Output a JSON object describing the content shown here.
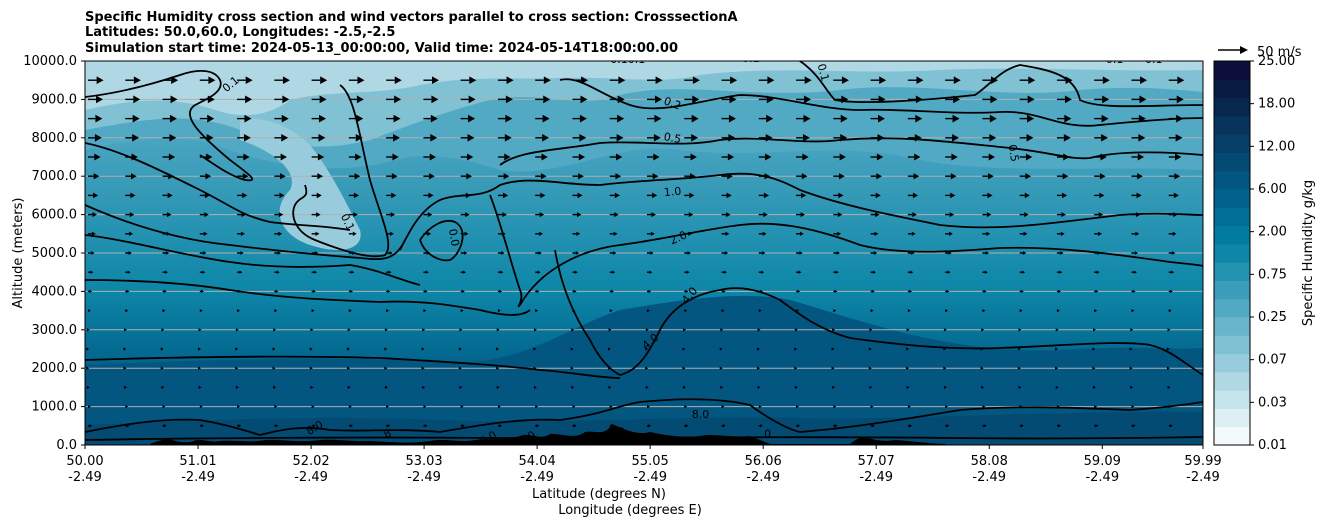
{
  "chart_data": {
    "type": "contour",
    "title_lines": [
      "Specific Humidity cross section and wind vectors parallel to cross section: CrosssectionA",
      "Latitudes: 50.0,60.0, Longitudes: -2.5,-2.5",
      "Simulation start time: 2024-05-13_00:00:00, Valid time: 2024-05-14T18:00:00.00"
    ],
    "ylabel": "Altitude (meters)",
    "xlabel_lat": "Latitude (degrees N)",
    "xlabel_lon": "Longitude (degrees E)",
    "ylim": [
      0,
      10000
    ],
    "xlim": [
      50.0,
      59.99
    ],
    "y_ticks": [
      "0.0",
      "1000.0",
      "2000.0",
      "3000.0",
      "4000.0",
      "5000.0",
      "6000.0",
      "7000.0",
      "8000.0",
      "9000.0",
      "10000.0"
    ],
    "x_ticks_lat": [
      "50.00",
      "51.01",
      "52.02",
      "53.03",
      "54.04",
      "55.05",
      "56.06",
      "57.07",
      "58.08",
      "59.09",
      "59.99"
    ],
    "x_ticks_lon": [
      "-2.49",
      "-2.49",
      "-2.49",
      "-2.49",
      "-2.49",
      "-2.49",
      "-2.49",
      "-2.49",
      "-2.49",
      "-2.49",
      "-2.49"
    ],
    "grid": "horizontal",
    "colorbar": {
      "label": "Specific Humidity g/kg",
      "tick_labels": [
        "0.01",
        "0.03",
        "0.07",
        "0.25",
        "0.75",
        "2.00",
        "6.00",
        "12.00",
        "18.00",
        "25.00"
      ],
      "colors": [
        "#f4fafc",
        "#deeff4",
        "#c6e4ec",
        "#afd8e4",
        "#98ccdc",
        "#80c1d4",
        "#69b5cc",
        "#52a9c3",
        "#3b9dba",
        "#2492b1",
        "#0d86a8",
        "#037aa0",
        "#016e97",
        "#02628c",
        "#035680",
        "#044b74",
        "#063f68",
        "#07335c",
        "#08274f",
        "#091b43",
        "#0b0f3a"
      ]
    },
    "contour_levels": [
      "0.1",
      "0.2",
      "0.5",
      "1.0",
      "2.0",
      "4.0",
      "8.0"
    ],
    "contour_labels": [
      {
        "text": "0.1",
        "lat": 51.3,
        "alt": 9300,
        "rot": -40
      },
      {
        "text": "0.1",
        "lat": 52.35,
        "alt": 5700,
        "rot": 65
      },
      {
        "text": "0.10.1",
        "lat": 54.85,
        "alt": 9950,
        "rot": 0
      },
      {
        "text": "0.1",
        "lat": 55.95,
        "alt": 9980,
        "rot": 0
      },
      {
        "text": "0.1",
        "lat": 56.6,
        "alt": 9600,
        "rot": 75
      },
      {
        "text": "0.1",
        "lat": 59.2,
        "alt": 9950,
        "rot": 0
      },
      {
        "text": "0.1",
        "lat": 59.55,
        "alt": 9950,
        "rot": 0
      },
      {
        "text": "0.2",
        "lat": 55.25,
        "alt": 8800,
        "rot": 20
      },
      {
        "text": "0.5",
        "lat": 55.25,
        "alt": 7900,
        "rot": 10
      },
      {
        "text": "0.5",
        "lat": 58.3,
        "alt": 7500,
        "rot": 80
      },
      {
        "text": "0.0",
        "lat": 53.3,
        "alt": 5300,
        "rot": 80
      },
      {
        "text": "1.0",
        "lat": 55.25,
        "alt": 6500,
        "rot": -5
      },
      {
        "text": "2.0",
        "lat": 55.3,
        "alt": 5300,
        "rot": -25
      },
      {
        "text": "4.0",
        "lat": 55.4,
        "alt": 3800,
        "rot": -50
      },
      {
        "text": "4.0",
        "lat": 55.05,
        "alt": 2600,
        "rot": -40
      },
      {
        "text": "8.0",
        "lat": 55.5,
        "alt": 700,
        "rot": 0
      },
      {
        "text": "8.0",
        "lat": 52.05,
        "alt": 350,
        "rot": -30
      },
      {
        "text": "8",
        "lat": 52.7,
        "alt": 200,
        "rot": -30
      },
      {
        "text": "8.0",
        "lat": 53.6,
        "alt": 80,
        "rot": -30
      },
      {
        "text": "8.0",
        "lat": 53.95,
        "alt": 80,
        "rot": -30
      },
      {
        "text": "8",
        "lat": 54.8,
        "alt": 250,
        "rot": -30
      },
      {
        "text": "0",
        "lat": 56.1,
        "alt": 200,
        "rot": 0
      }
    ],
    "quiver_key": {
      "label": "50 m/s",
      "speed": 50
    },
    "wind_rows_alt": [
      9500,
      9000,
      8500,
      8000,
      7500,
      7000,
      6500,
      6000,
      5500,
      5000,
      4500,
      4000,
      3500,
      3000,
      2500,
      2000,
      1500,
      1000,
      500
    ],
    "wind_speed_profile_ms": [
      26,
      25,
      24,
      23,
      21,
      19,
      17,
      15,
      13,
      11,
      9,
      7,
      5,
      3,
      2,
      2,
      3,
      5,
      7
    ]
  }
}
